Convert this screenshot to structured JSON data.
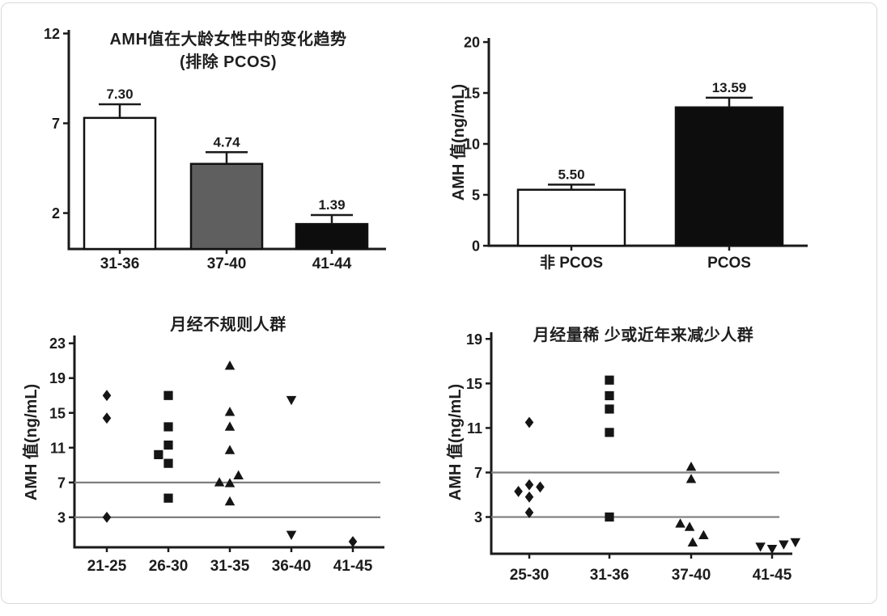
{
  "figure": {
    "background": "#ffffff",
    "card_border_color": "#d9d9d9",
    "text_color": "#1c1c1c",
    "axis_color": "#1a1a1a",
    "ref_line_color": "#7e7e7e",
    "marker_color": "#151515"
  },
  "chart_data": [
    {
      "type": "bar",
      "title": "AMH值在大龄女性中的变化趋势 (排除 PCOS)",
      "title_lines": [
        "AMH值在大龄女性中的变化趋势",
        "(排除 PCOS)"
      ],
      "ylabel": "",
      "xlabel": "",
      "categories": [
        "31-36",
        "37-40",
        "41-44"
      ],
      "values": [
        7.3,
        4.74,
        1.39
      ],
      "errors": [
        0.76,
        0.65,
        0.5
      ],
      "value_labels": [
        "7.30",
        "4.74",
        "1.39"
      ],
      "value_label_color": "#2b2b2b",
      "bar_fills": [
        "#ffffff",
        "#5f5f5f",
        "#0d0d0d"
      ],
      "bar_stroke": "#111111",
      "y_ticks": [
        2,
        7,
        12
      ],
      "ylim": [
        0,
        12.2
      ],
      "grid": false,
      "legend": "none"
    },
    {
      "type": "bar",
      "title": "",
      "title_lines": [],
      "ylabel": "AMH 值(ng/mL)",
      "xlabel": "",
      "categories": [
        "非 PCOS",
        "PCOS"
      ],
      "values": [
        5.5,
        13.59
      ],
      "errors": [
        0.5,
        0.95
      ],
      "value_labels": [
        "5.50",
        "13.59"
      ],
      "value_label_color": "#5c5c5c",
      "bar_fills": [
        "#ffffff",
        "#0d0d0d"
      ],
      "bar_stroke": "#111111",
      "y_ticks": [
        0,
        5,
        10,
        15,
        20
      ],
      "ylim": [
        0,
        20.4
      ],
      "grid": false,
      "legend": "none"
    },
    {
      "type": "scatter",
      "title": "月经不规则人群",
      "title_lines": [
        "月经不规则人群"
      ],
      "ylabel": "AMH 值(ng/mL)",
      "xlabel": "",
      "y_ticks": [
        3,
        7,
        11,
        15,
        19,
        23
      ],
      "ylim": [
        -0.45,
        23.9
      ],
      "ref_lines": [
        3,
        7
      ],
      "categories": [
        "21-25",
        "26-30",
        "31-35",
        "36-40",
        "41-45"
      ],
      "groups": [
        {
          "label": "21-25",
          "marker": "diamond",
          "points": [
            {
              "v": 17.0
            },
            {
              "v": 14.4
            },
            {
              "v": 3.0
            }
          ]
        },
        {
          "label": "26-30",
          "marker": "square",
          "points": [
            {
              "v": 17.0
            },
            {
              "v": 13.4
            },
            {
              "v": 11.3
            },
            {
              "v": 10.2,
              "dx": -0.16
            },
            {
              "v": 9.2
            },
            {
              "v": 5.2
            }
          ]
        },
        {
          "label": "31-35",
          "marker": "triangle-up",
          "points": [
            {
              "v": 20.4
            },
            {
              "v": 15.1
            },
            {
              "v": 13.4
            },
            {
              "v": 10.7
            },
            {
              "v": 7.8,
              "dx": 0.14
            },
            {
              "v": 7.0,
              "dx": -0.17
            },
            {
              "v": 6.9
            },
            {
              "v": 4.8
            }
          ]
        },
        {
          "label": "36-40",
          "marker": "triangle-down",
          "points": [
            {
              "v": 16.5
            },
            {
              "v": 1.0
            }
          ]
        },
        {
          "label": "41-45",
          "marker": "diamond",
          "points": [
            {
              "v": 0.2
            }
          ]
        }
      ],
      "grid": false,
      "legend": "none"
    },
    {
      "type": "scatter",
      "title": "月经量稀 少或近年来减少人群",
      "title_lines": [
        "月经量稀 少或近年来减少人群"
      ],
      "ylabel": "AMH 值(ng/mL)",
      "xlabel": "",
      "y_ticks": [
        3,
        7,
        11,
        15,
        19
      ],
      "ylim": [
        -0.3,
        19.6
      ],
      "ref_lines": [
        3,
        7
      ],
      "categories": [
        "25-30",
        "31-36",
        "37-40",
        "41-45"
      ],
      "groups": [
        {
          "label": "25-30",
          "marker": "diamond",
          "points": [
            {
              "v": 11.5
            },
            {
              "v": 5.9
            },
            {
              "v": 5.7,
              "dx": 0.14
            },
            {
              "v": 5.3,
              "dx": -0.14
            },
            {
              "v": 4.8
            },
            {
              "v": 3.4
            }
          ]
        },
        {
          "label": "31-36",
          "marker": "square",
          "points": [
            {
              "v": 15.3
            },
            {
              "v": 13.9
            },
            {
              "v": 12.7
            },
            {
              "v": 10.6
            },
            {
              "v": 3.0
            }
          ]
        },
        {
          "label": "37-40",
          "marker": "triangle-up",
          "points": [
            {
              "v": 7.5
            },
            {
              "v": 6.4
            },
            {
              "v": 2.4,
              "dx": -0.14
            },
            {
              "v": 2.1,
              "dx": -0.02
            },
            {
              "v": 1.35,
              "dx": 0.16
            },
            {
              "v": 0.7,
              "dx": 0.02
            }
          ]
        },
        {
          "label": "41-45",
          "marker": "triangle-down",
          "points": [
            {
              "v": 0.35,
              "dx": -0.15
            },
            {
              "v": 0.15
            },
            {
              "v": 0.55,
              "dx": 0.15
            },
            {
              "v": 0.75,
              "dx": 0.3
            }
          ]
        }
      ],
      "grid": false,
      "legend": "none"
    }
  ]
}
